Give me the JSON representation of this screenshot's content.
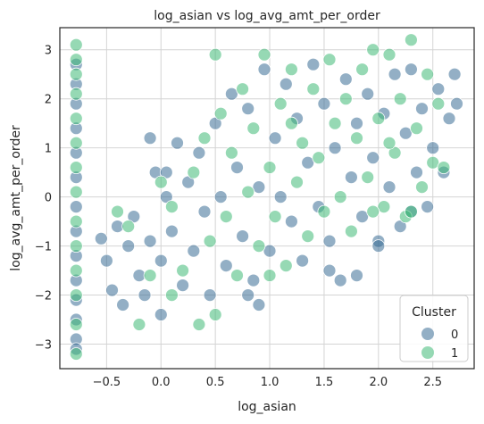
{
  "chart_data": {
    "type": "scatter",
    "title": "log_asian vs log_avg_amt_per_order",
    "xlabel": "log_asian",
    "ylabel": "log_avg_amt_per_order",
    "xlim": [
      -0.93,
      2.88
    ],
    "ylim": [
      -3.5,
      3.45
    ],
    "xticks": [
      -0.5,
      0.0,
      0.5,
      1.0,
      1.5,
      2.0,
      2.5
    ],
    "xtick_labels": [
      "−0.5",
      "0.0",
      "0.5",
      "1.0",
      "1.5",
      "2.0",
      "2.5"
    ],
    "yticks": [
      -3,
      -2,
      -1,
      0,
      1,
      2,
      3
    ],
    "ytick_labels": [
      "−3",
      "−2",
      "−1",
      "0",
      "1",
      "2",
      "3"
    ],
    "grid": true,
    "legend": {
      "title": "Cluster",
      "placement": "lower-right",
      "entries": [
        "0",
        "1"
      ]
    },
    "series_colors": [
      "#3b6d95",
      "#3fba77"
    ],
    "series": [
      {
        "name": "0",
        "points": [
          [
            -0.78,
            2.7
          ],
          [
            -0.78,
            2.3
          ],
          [
            -0.78,
            1.9
          ],
          [
            -0.78,
            1.4
          ],
          [
            -0.78,
            0.9
          ],
          [
            -0.78,
            0.4
          ],
          [
            -0.78,
            -0.2
          ],
          [
            -0.78,
            -0.7
          ],
          [
            -0.78,
            -1.2
          ],
          [
            -0.78,
            -1.7
          ],
          [
            -0.78,
            -2.1
          ],
          [
            -0.78,
            -2.5
          ],
          [
            -0.78,
            -2.9
          ],
          [
            -0.78,
            -3.1
          ],
          [
            -0.55,
            -0.85
          ],
          [
            -0.5,
            -1.3
          ],
          [
            -0.45,
            -1.9
          ],
          [
            -0.4,
            -0.6
          ],
          [
            -0.35,
            -2.2
          ],
          [
            -0.3,
            -1.0
          ],
          [
            -0.25,
            -0.4
          ],
          [
            -0.2,
            -1.6
          ],
          [
            -0.15,
            -2.0
          ],
          [
            -0.1,
            -0.9
          ],
          [
            -0.05,
            0.5
          ],
          [
            0.0,
            -2.4
          ],
          [
            0.0,
            -1.3
          ],
          [
            0.05,
            0.0
          ],
          [
            0.05,
            0.5
          ],
          [
            0.1,
            -0.7
          ],
          [
            0.15,
            1.1
          ],
          [
            0.2,
            -1.8
          ],
          [
            0.25,
            0.3
          ],
          [
            0.3,
            -1.1
          ],
          [
            0.35,
            0.9
          ],
          [
            0.4,
            -0.3
          ],
          [
            0.45,
            -2.0
          ],
          [
            0.5,
            1.5
          ],
          [
            0.55,
            0.0
          ],
          [
            0.6,
            -1.4
          ],
          [
            0.65,
            2.1
          ],
          [
            0.7,
            0.6
          ],
          [
            0.75,
            -0.8
          ],
          [
            0.8,
            1.8
          ],
          [
            0.85,
            -1.7
          ],
          [
            0.9,
            0.2
          ],
          [
            0.95,
            2.6
          ],
          [
            1.0,
            -1.1
          ],
          [
            1.05,
            1.2
          ],
          [
            1.1,
            0.0
          ],
          [
            1.15,
            2.3
          ],
          [
            1.2,
            -0.5
          ],
          [
            1.25,
            1.6
          ],
          [
            1.3,
            -1.3
          ],
          [
            1.35,
            0.7
          ],
          [
            1.4,
            2.7
          ],
          [
            1.45,
            -0.2
          ],
          [
            1.5,
            1.9
          ],
          [
            1.55,
            -0.9
          ],
          [
            1.6,
            1.0
          ],
          [
            1.65,
            -1.7
          ],
          [
            1.7,
            2.4
          ],
          [
            1.75,
            0.4
          ],
          [
            1.8,
            1.5
          ],
          [
            1.85,
            -0.4
          ],
          [
            1.9,
            2.1
          ],
          [
            1.95,
            0.8
          ],
          [
            2.0,
            -0.9
          ],
          [
            2.05,
            1.7
          ],
          [
            2.1,
            0.2
          ],
          [
            2.15,
            2.5
          ],
          [
            2.2,
            -0.6
          ],
          [
            2.25,
            1.3
          ],
          [
            2.3,
            2.6
          ],
          [
            2.35,
            0.5
          ],
          [
            2.4,
            1.8
          ],
          [
            2.45,
            -0.2
          ],
          [
            2.5,
            1.0
          ],
          [
            2.55,
            2.2
          ],
          [
            2.6,
            0.5
          ],
          [
            2.65,
            1.6
          ],
          [
            2.7,
            2.5
          ],
          [
            2.72,
            1.9
          ],
          [
            2.3,
            -0.3
          ],
          [
            1.55,
            -1.5
          ],
          [
            -0.1,
            1.2
          ],
          [
            0.9,
            -2.2
          ],
          [
            2.0,
            -1.0
          ],
          [
            1.8,
            -1.6
          ],
          [
            0.8,
            -2.0
          ]
        ]
      },
      {
        "name": "1",
        "points": [
          [
            -0.78,
            3.1
          ],
          [
            -0.78,
            2.8
          ],
          [
            -0.78,
            2.5
          ],
          [
            -0.78,
            2.1
          ],
          [
            -0.78,
            1.6
          ],
          [
            -0.78,
            1.1
          ],
          [
            -0.78,
            0.6
          ],
          [
            -0.78,
            0.1
          ],
          [
            -0.78,
            -0.5
          ],
          [
            -0.78,
            -1.0
          ],
          [
            -0.78,
            -1.5
          ],
          [
            -0.78,
            -2.0
          ],
          [
            -0.78,
            -2.6
          ],
          [
            -0.78,
            -3.2
          ],
          [
            -0.4,
            -0.3
          ],
          [
            -0.3,
            -0.6
          ],
          [
            -0.2,
            -2.6
          ],
          [
            -0.1,
            -1.6
          ],
          [
            0.0,
            0.3
          ],
          [
            0.1,
            -0.2
          ],
          [
            0.2,
            -1.5
          ],
          [
            0.3,
            0.5
          ],
          [
            0.35,
            -2.6
          ],
          [
            0.4,
            1.2
          ],
          [
            0.45,
            -0.9
          ],
          [
            0.5,
            2.9
          ],
          [
            0.5,
            -2.4
          ],
          [
            0.55,
            1.7
          ],
          [
            0.6,
            -0.4
          ],
          [
            0.65,
            0.9
          ],
          [
            0.7,
            -1.6
          ],
          [
            0.75,
            2.2
          ],
          [
            0.8,
            0.1
          ],
          [
            0.85,
            1.4
          ],
          [
            0.9,
            -1.0
          ],
          [
            0.95,
            2.9
          ],
          [
            1.0,
            0.6
          ],
          [
            1.05,
            -0.4
          ],
          [
            1.1,
            1.9
          ],
          [
            1.15,
            -1.4
          ],
          [
            1.2,
            2.6
          ],
          [
            1.25,
            0.3
          ],
          [
            1.3,
            1.1
          ],
          [
            1.35,
            -0.8
          ],
          [
            1.4,
            2.2
          ],
          [
            1.45,
            0.8
          ],
          [
            1.5,
            -0.3
          ],
          [
            1.55,
            2.8
          ],
          [
            1.6,
            1.5
          ],
          [
            1.65,
            0.0
          ],
          [
            1.7,
            2.0
          ],
          [
            1.75,
            -0.7
          ],
          [
            1.8,
            1.2
          ],
          [
            1.85,
            2.6
          ],
          [
            1.9,
            0.4
          ],
          [
            1.95,
            3.0
          ],
          [
            2.0,
            1.6
          ],
          [
            2.05,
            -0.2
          ],
          [
            2.1,
            2.9
          ],
          [
            2.15,
            0.9
          ],
          [
            2.2,
            2.0
          ],
          [
            2.25,
            -0.4
          ],
          [
            2.3,
            3.2
          ],
          [
            2.35,
            1.4
          ],
          [
            2.4,
            0.2
          ],
          [
            2.45,
            2.5
          ],
          [
            2.5,
            0.7
          ],
          [
            2.55,
            1.9
          ],
          [
            2.6,
            0.6
          ],
          [
            2.3,
            -0.3
          ],
          [
            1.95,
            -0.3
          ],
          [
            1.0,
            -1.6
          ],
          [
            0.1,
            -2.0
          ],
          [
            1.2,
            1.5
          ],
          [
            2.1,
            1.1
          ]
        ]
      }
    ]
  }
}
